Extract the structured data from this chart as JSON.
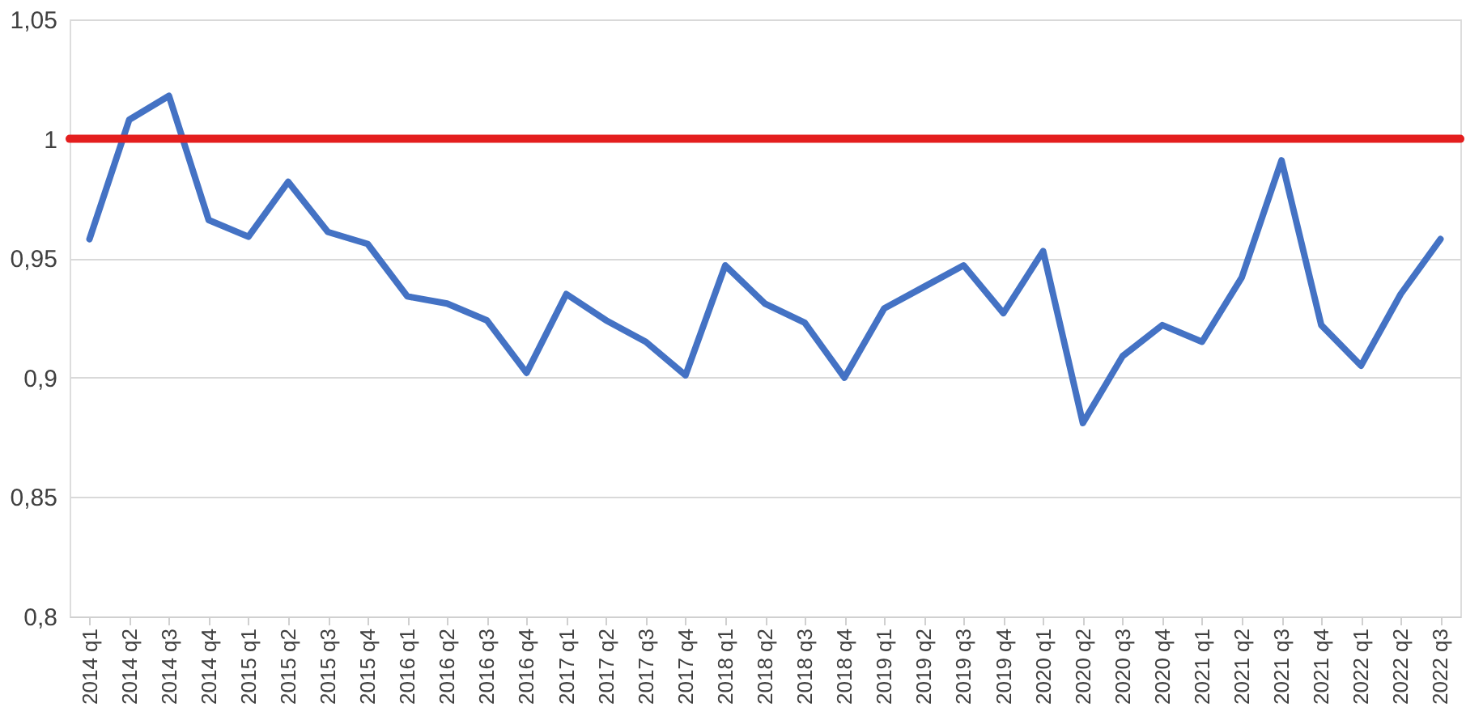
{
  "chart_data": {
    "type": "line",
    "categories": [
      "2014 q1",
      "2014 q2",
      "2014 q3",
      "2014 q4",
      "2015 q1",
      "2015 q2",
      "2015 q3",
      "2015 q4",
      "2016 q1",
      "2016 q2",
      "2016 q3",
      "2016 q4",
      "2017 q1",
      "2017 q2",
      "2017 q3",
      "2017 q4",
      "2018 q1",
      "2018 q2",
      "2018 q3",
      "2018 q4",
      "2019 q1",
      "2019 q2",
      "2019 q3",
      "2019 q4",
      "2020 q1",
      "2020 q2",
      "2020 q3",
      "2020 q4",
      "2021 q1",
      "2021 q2",
      "2021 q3",
      "2021 q4",
      "2022 q1",
      "2022 q2",
      "2022 q3"
    ],
    "series": [
      {
        "color": "#4472c4",
        "values": [
          0.958,
          1.008,
          1.018,
          0.966,
          0.959,
          0.982,
          0.961,
          0.956,
          0.934,
          0.931,
          0.924,
          0.902,
          0.935,
          0.924,
          0.915,
          0.901,
          0.947,
          0.931,
          0.923,
          0.9,
          0.929,
          0.938,
          0.947,
          0.927,
          0.953,
          0.881,
          0.909,
          0.922,
          0.915,
          0.942,
          0.991,
          0.922,
          0.905,
          0.935,
          0.958
        ]
      }
    ],
    "ylim": [
      0.8,
      1.05
    ],
    "yticks": [
      {
        "value": 0.8,
        "label": "0,8"
      },
      {
        "value": 0.85,
        "label": "0,85"
      },
      {
        "value": 0.9,
        "label": "0,9"
      },
      {
        "value": 0.95,
        "label": "0,95"
      },
      {
        "value": 1,
        "label": "1"
      },
      {
        "value": 1.05,
        "label": "1,05"
      }
    ],
    "ref_lines": [
      {
        "axis": "y",
        "value": 1,
        "label": null,
        "color": "#e41e1e"
      }
    ],
    "grid": "y",
    "marker": "none",
    "line_style": "solid"
  }
}
